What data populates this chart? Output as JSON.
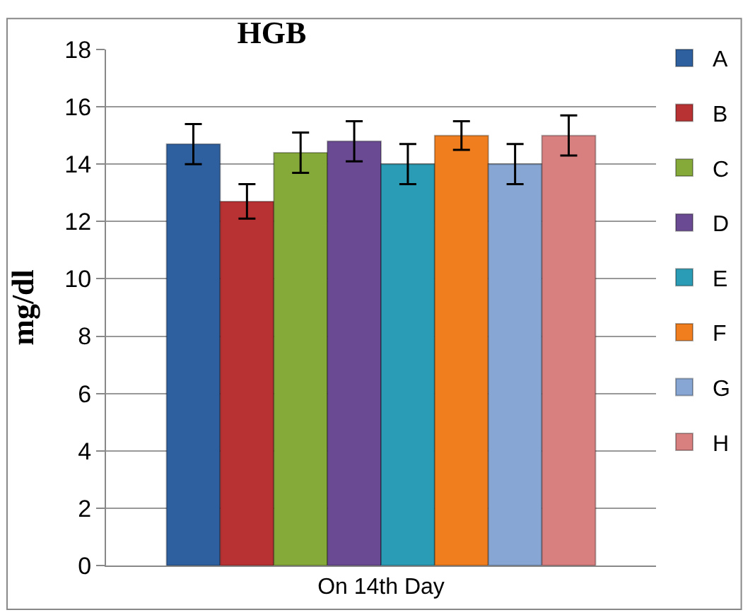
{
  "chart_data": {
    "type": "bar",
    "title": "HGB",
    "ylabel": "mg/dl",
    "categories": [
      "On 14th Day"
    ],
    "series": [
      {
        "name": "A",
        "color": "#2e5f9e",
        "values": [
          14.7
        ],
        "errors": [
          0.7
        ]
      },
      {
        "name": "B",
        "color": "#b93233",
        "values": [
          12.7
        ],
        "errors": [
          0.6
        ]
      },
      {
        "name": "C",
        "color": "#86aa3a",
        "values": [
          14.4
        ],
        "errors": [
          0.7
        ]
      },
      {
        "name": "D",
        "color": "#6a4b93",
        "values": [
          14.8
        ],
        "errors": [
          0.7
        ]
      },
      {
        "name": "E",
        "color": "#2a9cb5",
        "values": [
          14.0
        ],
        "errors": [
          0.7
        ]
      },
      {
        "name": "F",
        "color": "#f07e1e",
        "values": [
          15.0
        ],
        "errors": [
          0.5
        ]
      },
      {
        "name": "G",
        "color": "#87a6d4",
        "values": [
          14.0
        ],
        "errors": [
          0.7
        ]
      },
      {
        "name": "H",
        "color": "#d88080",
        "values": [
          15.0
        ],
        "errors": [
          0.7
        ]
      }
    ],
    "ylim": [
      0,
      18
    ],
    "yticks": [
      0,
      2,
      4,
      6,
      8,
      10,
      12,
      14,
      16,
      18
    ],
    "grid": "y",
    "legend": "right"
  }
}
